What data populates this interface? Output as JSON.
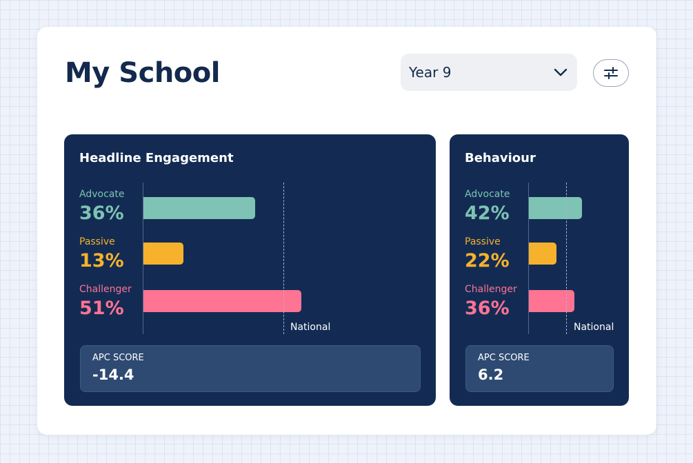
{
  "header": {
    "title": "My School",
    "year_select": {
      "value": "Year 9"
    }
  },
  "colors": {
    "advocate": "#7ec3b3",
    "passive": "#f6b22d",
    "challenger": "#ff7393",
    "panel_bg": "#132b53",
    "title": "#13294d"
  },
  "panels": [
    {
      "title": "Headline Engagement",
      "national_label": "National",
      "items": [
        {
          "label": "Advocate",
          "pct": "36%",
          "value": 36,
          "color": "#7ec3b3"
        },
        {
          "label": "Passive",
          "pct": "13%",
          "value": 13,
          "color": "#f6b22d"
        },
        {
          "label": "Challenger",
          "pct": "51%",
          "value": 51,
          "color": "#ff7393"
        }
      ],
      "apc": {
        "label": "APC SCORE",
        "value": "-14.4"
      }
    },
    {
      "title": "Behaviour",
      "national_label": "National",
      "items": [
        {
          "label": "Advocate",
          "pct": "42%",
          "value": 42,
          "color": "#7ec3b3"
        },
        {
          "label": "Passive",
          "pct": "22%",
          "value": 22,
          "color": "#f6b22d"
        },
        {
          "label": "Challenger",
          "pct": "36%",
          "value": 36,
          "color": "#ff7393"
        }
      ],
      "apc": {
        "label": "APC SCORE",
        "value": "6.2"
      }
    }
  ]
}
